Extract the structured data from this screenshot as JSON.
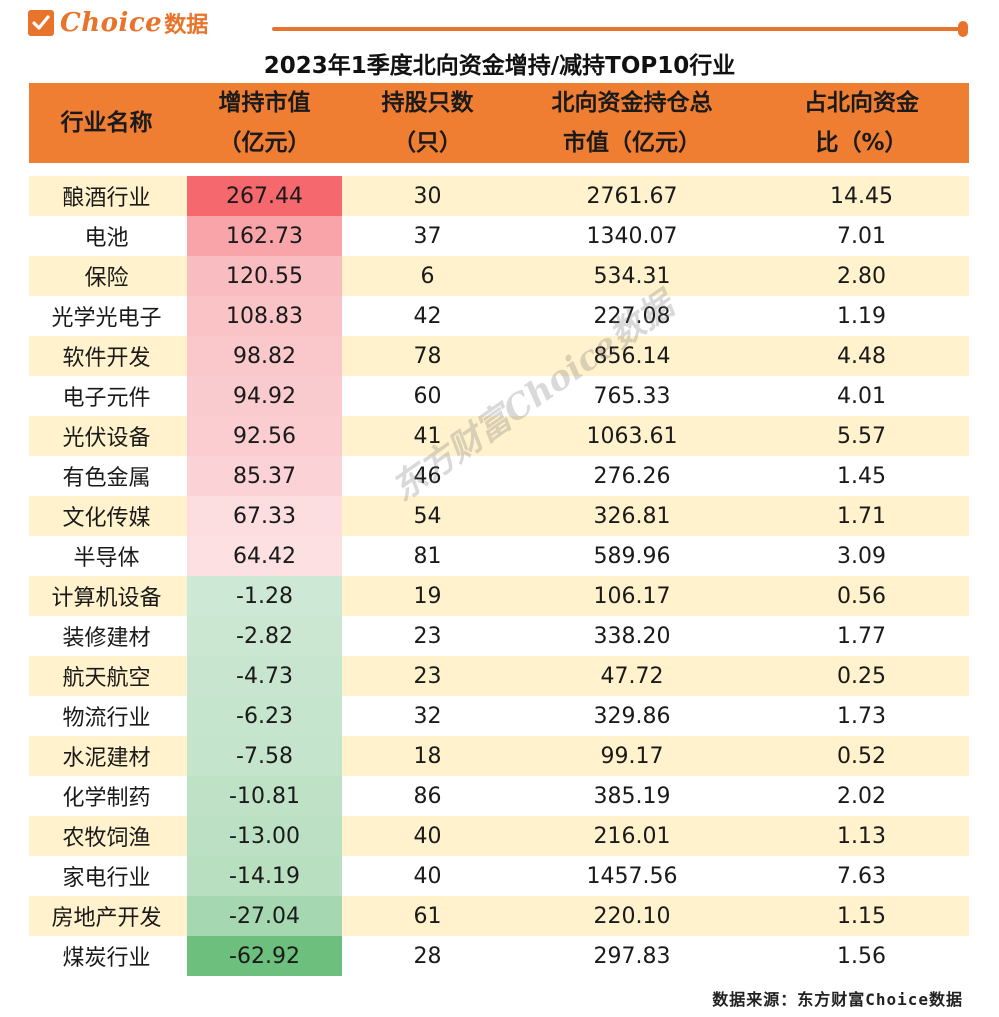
{
  "brand": {
    "name": "Choice",
    "suffix": "数据"
  },
  "title": "2023年1季度北向资金增持/减持TOP10行业",
  "columns": [
    "行业名称",
    "增持市值\n（亿元）",
    "持股只数\n（只）",
    "北向资金持仓总\n市值（亿元）",
    "占北向资金\n比（%）"
  ],
  "rows": [
    {
      "industry": "酿酒行业",
      "change": "267.44",
      "count": "30",
      "total": "2761.67",
      "pct": "14.45",
      "color": "#f5696e"
    },
    {
      "industry": "电池",
      "change": "162.73",
      "count": "37",
      "total": "1340.07",
      "pct": "7.01",
      "color": "#f8a4a8"
    },
    {
      "industry": "保险",
      "change": "120.55",
      "count": "6",
      "total": "534.31",
      "pct": "2.80",
      "color": "#f9bcc0"
    },
    {
      "industry": "光学光电子",
      "change": "108.83",
      "count": "42",
      "total": "227.08",
      "pct": "1.19",
      "color": "#fac3c6"
    },
    {
      "industry": "软件开发",
      "change": "98.82",
      "count": "78",
      "total": "856.14",
      "pct": "4.48",
      "color": "#fac8cb"
    },
    {
      "industry": "电子元件",
      "change": "94.92",
      "count": "60",
      "total": "765.33",
      "pct": "4.01",
      "color": "#facbce"
    },
    {
      "industry": "光伏设备",
      "change": "92.56",
      "count": "41",
      "total": "1063.61",
      "pct": "5.57",
      "color": "#fbcdd0"
    },
    {
      "industry": "有色金属",
      "change": "85.37",
      "count": "46",
      "total": "276.26",
      "pct": "1.45",
      "color": "#fbd2d5"
    },
    {
      "industry": "文化传媒",
      "change": "67.33",
      "count": "54",
      "total": "326.81",
      "pct": "1.71",
      "color": "#fcdde0"
    },
    {
      "industry": "半导体",
      "change": "64.42",
      "count": "81",
      "total": "589.96",
      "pct": "3.09",
      "color": "#fce0e2"
    },
    {
      "industry": "计算机设备",
      "change": "-1.28",
      "count": "19",
      "total": "106.17",
      "pct": "0.56",
      "color": "#cde8d4"
    },
    {
      "industry": "装修建材",
      "change": "-2.82",
      "count": "23",
      "total": "338.20",
      "pct": "1.77",
      "color": "#cbe7d2"
    },
    {
      "industry": "航天航空",
      "change": "-4.73",
      "count": "23",
      "total": "47.72",
      "pct": "0.25",
      "color": "#c8e6cf"
    },
    {
      "industry": "物流行业",
      "change": "-6.23",
      "count": "32",
      "total": "329.86",
      "pct": "1.73",
      "color": "#c6e5cd"
    },
    {
      "industry": "水泥建材",
      "change": "-7.58",
      "count": "18",
      "total": "99.17",
      "pct": "0.52",
      "color": "#c4e4cb"
    },
    {
      "industry": "化学制药",
      "change": "-10.81",
      "count": "86",
      "total": "385.19",
      "pct": "2.02",
      "color": "#bfe2c7"
    },
    {
      "industry": "农牧饲渔",
      "change": "-13.00",
      "count": "40",
      "total": "216.01",
      "pct": "1.13",
      "color": "#bbe0c3"
    },
    {
      "industry": "家电行业",
      "change": "-14.19",
      "count": "40",
      "total": "1457.56",
      "pct": "7.63",
      "color": "#b9dfc1"
    },
    {
      "industry": "房地产开发",
      "change": "-27.04",
      "count": "61",
      "total": "220.10",
      "pct": "1.15",
      "color": "#a5d7b0"
    },
    {
      "industry": "煤炭行业",
      "change": "-62.92",
      "count": "28",
      "total": "297.83",
      "pct": "1.56",
      "color": "#6cbf7d"
    }
  ],
  "source": "数据来源：东方财富Choice数据",
  "watermark": "东方财富Choice数据"
}
